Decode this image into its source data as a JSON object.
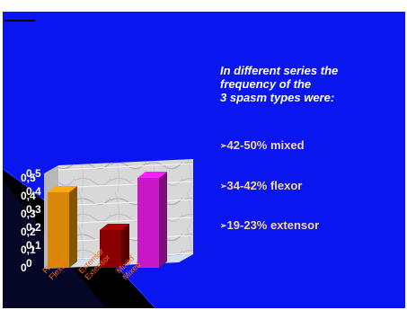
{
  "text": {
    "intro_lines": [
      "In different series the",
      "frequency of the",
      "3 spasm types were:"
    ],
    "bullets": [
      {
        "marker": "➢",
        "text": "42-50% mixed"
      },
      {
        "marker": "➢",
        "text": "34-42% flexor"
      },
      {
        "marker": "➢",
        "text": "19-23% extensor"
      }
    ]
  },
  "colors": {
    "background": "#0a16f0",
    "flexor": "#d8870a",
    "extensor": "#8a0000",
    "mixed": "#c818c8",
    "text": "#ffffff",
    "bullet_text": "#f2d8a0",
    "tick_label": "#ffffff",
    "category_label": "#ff6a10"
  },
  "chart_data": {
    "type": "bar",
    "style": "3d",
    "categories": [
      "Flexor",
      "Extensor",
      "Mixed"
    ],
    "values": [
      0.42,
      0.21,
      0.5
    ],
    "y_ticks": [
      "0",
      "0,1",
      "0,2",
      "0,3",
      "0,4",
      "0,5"
    ],
    "ylim": [
      0,
      0.5
    ],
    "grid": true
  }
}
